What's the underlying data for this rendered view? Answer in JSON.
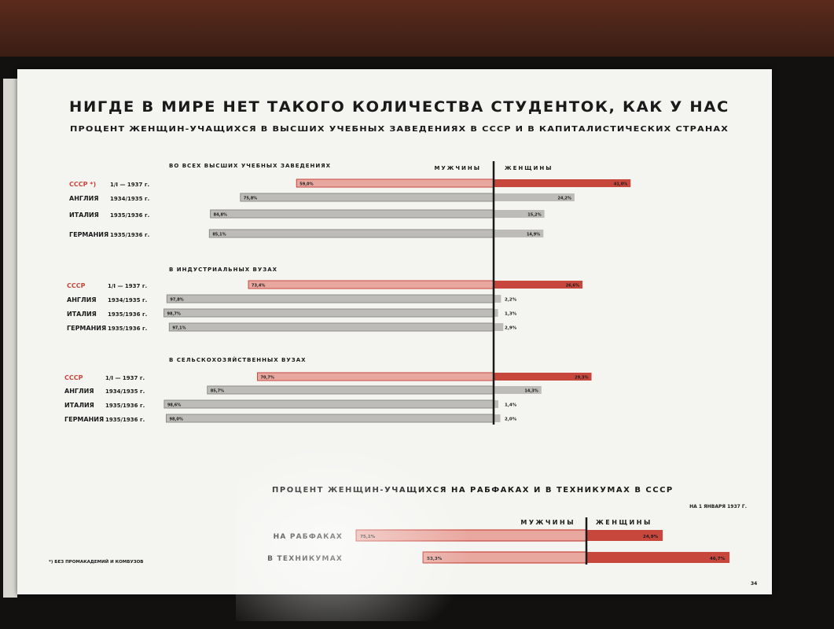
{
  "title": "НИГДЕ В МИРЕ НЕТ ТАКОГО КОЛИЧЕСТВА СТУДЕНТОК, КАК У НАС",
  "subtitle": "ПРОЦЕНТ ЖЕНЩИН-УЧАЩИХСЯ В ВЫСШИХ УЧЕБНЫХ ЗАВЕДЕНИЯХ В СССР И В КАПИТАЛИСТИЧЕСКИХ СТРАНАХ",
  "label_men": "МУЖЧИНЫ",
  "label_women": "ЖЕНЩИНЫ",
  "footnote": "*) БЕЗ ПРОМАКАДЕМИЙ И КОМВУЗОВ",
  "page_number": "34",
  "colors": {
    "ussr": "#c8473d",
    "ussr_light": "#e8a8a0",
    "other": "#bdbcb8",
    "other_dark": "#8d8c88",
    "ink": "#1a1a1a"
  },
  "chart_data": [
    {
      "type": "bar",
      "group_title": "ВО ВСЕХ ВЫСШИХ УЧЕБНЫХ ЗАВЕДЕНИЯХ",
      "rows": [
        {
          "country": "СССР",
          "mark": "*)",
          "date": "1/I — 1937 г.",
          "men": 59.0,
          "women": 41.0,
          "men_label": "59,0%",
          "women_label": "41,0%",
          "ussr": true
        },
        {
          "country": "АНГЛИЯ",
          "mark": "",
          "date": "1934/1935 г.",
          "men": 75.8,
          "women": 24.2,
          "men_label": "75,8%",
          "women_label": "24,2%",
          "ussr": false
        },
        {
          "country": "ИТАЛИЯ",
          "mark": "",
          "date": "1935/1936 г.",
          "men": 84.8,
          "women": 15.2,
          "men_label": "84,8%",
          "women_label": "15,2%",
          "ussr": false
        },
        {
          "country": "ГЕРМАНИЯ",
          "mark": "",
          "date": "1935/1936 г.",
          "men": 85.1,
          "women": 14.9,
          "men_label": "85,1%",
          "women_label": "14,9%",
          "ussr": false
        }
      ]
    },
    {
      "type": "bar",
      "group_title": "В ИНДУСТРИАЛЬНЫХ ВУЗАХ",
      "rows": [
        {
          "country": "СССР",
          "mark": "",
          "date": "1/I — 1937 г.",
          "men": 73.4,
          "women": 26.6,
          "men_label": "73,4%",
          "women_label": "26,6%",
          "ussr": true
        },
        {
          "country": "АНГЛИЯ",
          "mark": "",
          "date": "1934/1935 г.",
          "men": 97.8,
          "women": 2.2,
          "men_label": "97,8%",
          "women_label": "2,2%",
          "ussr": false
        },
        {
          "country": "ИТАЛИЯ",
          "mark": "",
          "date": "1935/1936 г.",
          "men": 98.7,
          "women": 1.3,
          "men_label": "98,7%",
          "women_label": "1,3%",
          "ussr": false
        },
        {
          "country": "ГЕРМАНИЯ",
          "mark": "",
          "date": "1935/1936 г.",
          "men": 97.1,
          "women": 2.9,
          "men_label": "97,1%",
          "women_label": "2,9%",
          "ussr": false
        }
      ]
    },
    {
      "type": "bar",
      "group_title": "В СЕЛЬСКОХОЗЯЙСТВЕННЫХ ВУЗАХ",
      "rows": [
        {
          "country": "СССР",
          "mark": "",
          "date": "1/I — 1937 г.",
          "men": 70.7,
          "women": 29.3,
          "men_label": "70,7%",
          "women_label": "29,3%",
          "ussr": true
        },
        {
          "country": "АНГЛИЯ",
          "mark": "",
          "date": "1934/1935 г.",
          "men": 85.7,
          "women": 14.3,
          "men_label": "85,7%",
          "women_label": "14,3%",
          "ussr": false
        },
        {
          "country": "ИТАЛИЯ",
          "mark": "",
          "date": "1935/1936 г.",
          "men": 98.6,
          "women": 1.4,
          "men_label": "98,6%",
          "women_label": "1,4%",
          "ussr": false
        },
        {
          "country": "ГЕРМАНИЯ",
          "mark": "",
          "date": "1935/1936 г.",
          "men": 98.0,
          "women": 2.0,
          "men_label": "98,0%",
          "women_label": "2,0%",
          "ussr": false
        }
      ]
    },
    {
      "type": "bar",
      "title": "ПРОЦЕНТ ЖЕНЩИН-УЧАЩИХСЯ НА РАБФАКАХ И В ТЕХНИКУМАХ В СССР",
      "date": "НА 1 ЯНВАРЯ 1937 Г.",
      "rows": [
        {
          "country": "НА РАБФАКАХ",
          "men": 75.1,
          "women": 24.9,
          "men_label": "75,1%",
          "women_label": "24,9%",
          "ussr": true
        },
        {
          "country": "В ТЕХНИКУМАХ",
          "men": 53.3,
          "women": 46.7,
          "men_label": "53,3%",
          "women_label": "46,7%",
          "ussr": true
        }
      ]
    }
  ]
}
